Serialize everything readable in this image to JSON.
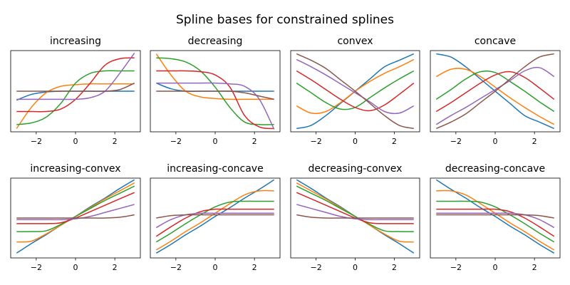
{
  "title": "Spline bases for constrained splines",
  "chart_data": [
    {
      "type": "line",
      "title": "increasing",
      "x": [
        -3,
        -2.25,
        -1.5,
        -0.75,
        0,
        0.75,
        1.5,
        2.25,
        3
      ],
      "xlim": [
        -3.3,
        3.3
      ],
      "ylim": [
        0,
        1
      ],
      "xticks": [
        {
          "value": -2,
          "label": "−2"
        },
        0,
        2
      ],
      "series": [
        {
          "color": "#1f77b4",
          "values": [
            0.39,
            0.46,
            0.49,
            0.5,
            0.5,
            0.5,
            0.5,
            0.5,
            0.5
          ]
        },
        {
          "color": "#ff7f0e",
          "values": [
            0.04,
            0.3,
            0.48,
            0.56,
            0.58,
            0.59,
            0.59,
            0.59,
            0.59
          ]
        },
        {
          "color": "#2ca02c",
          "values": [
            0.09,
            0.11,
            0.18,
            0.35,
            0.6,
            0.72,
            0.75,
            0.75,
            0.75
          ]
        },
        {
          "color": "#d62728",
          "values": [
            0.25,
            0.25,
            0.25,
            0.28,
            0.4,
            0.6,
            0.82,
            0.9,
            0.91
          ]
        },
        {
          "color": "#9467bd",
          "values": [
            0.4,
            0.4,
            0.4,
            0.4,
            0.4,
            0.42,
            0.5,
            0.72,
            0.97
          ]
        },
        {
          "color": "#8c564b",
          "values": [
            0.5,
            0.5,
            0.5,
            0.5,
            0.5,
            0.5,
            0.5,
            0.52,
            0.6
          ]
        }
      ]
    },
    {
      "type": "line",
      "title": "decreasing",
      "x": [
        -3,
        -2.25,
        -1.5,
        -0.75,
        0,
        0.75,
        1.5,
        2.25,
        3
      ],
      "xlim": [
        -3.3,
        3.3
      ],
      "ylim": [
        0,
        1
      ],
      "xticks": [
        {
          "value": -2,
          "label": "−2"
        },
        0,
        2
      ],
      "series": [
        {
          "color": "#1f77b4",
          "values": [
            0.6,
            0.53,
            0.5,
            0.5,
            0.5,
            0.5,
            0.5,
            0.5,
            0.5
          ]
        },
        {
          "color": "#ff7f0e",
          "values": [
            0.96,
            0.7,
            0.5,
            0.43,
            0.41,
            0.4,
            0.4,
            0.4,
            0.4
          ]
        },
        {
          "color": "#2ca02c",
          "values": [
            0.91,
            0.9,
            0.86,
            0.75,
            0.55,
            0.3,
            0.12,
            0.09,
            0.09
          ]
        },
        {
          "color": "#d62728",
          "values": [
            0.75,
            0.75,
            0.75,
            0.74,
            0.7,
            0.55,
            0.2,
            0.06,
            0.04
          ]
        },
        {
          "color": "#9467bd",
          "values": [
            0.6,
            0.6,
            0.6,
            0.6,
            0.6,
            0.59,
            0.56,
            0.4,
            0.03
          ]
        },
        {
          "color": "#8c564b",
          "values": [
            0.5,
            0.5,
            0.5,
            0.5,
            0.5,
            0.5,
            0.48,
            0.44,
            0.4
          ]
        }
      ]
    },
    {
      "type": "line",
      "title": "convex",
      "x": [
        -3,
        -2.25,
        -1.5,
        -0.75,
        0,
        0.75,
        1.5,
        2.25,
        3
      ],
      "xlim": [
        -3.3,
        3.3
      ],
      "ylim": [
        0,
        1
      ],
      "xticks": [
        {
          "value": -2,
          "label": "−2"
        },
        0,
        2
      ],
      "series": [
        {
          "color": "#1f77b4",
          "values": [
            0.04,
            0.08,
            0.2,
            0.35,
            0.5,
            0.65,
            0.8,
            0.88,
            0.96
          ]
        },
        {
          "color": "#ff7f0e",
          "values": [
            0.32,
            0.23,
            0.25,
            0.36,
            0.5,
            0.62,
            0.72,
            0.8,
            0.89
          ]
        },
        {
          "color": "#2ca02c",
          "values": [
            0.6,
            0.48,
            0.36,
            0.28,
            0.3,
            0.42,
            0.54,
            0.65,
            0.75
          ]
        },
        {
          "color": "#d62728",
          "values": [
            0.75,
            0.64,
            0.52,
            0.4,
            0.3,
            0.26,
            0.33,
            0.46,
            0.6
          ]
        },
        {
          "color": "#9467bd",
          "values": [
            0.89,
            0.8,
            0.7,
            0.59,
            0.48,
            0.37,
            0.25,
            0.23,
            0.32
          ]
        },
        {
          "color": "#8c564b",
          "values": [
            0.96,
            0.88,
            0.78,
            0.64,
            0.5,
            0.35,
            0.2,
            0.08,
            0.04
          ]
        }
      ]
    },
    {
      "type": "line",
      "title": "concave",
      "x": [
        -3,
        -2.25,
        -1.5,
        -0.75,
        0,
        0.75,
        1.5,
        2.25,
        3
      ],
      "xlim": [
        -3.3,
        3.3
      ],
      "ylim": [
        0,
        1
      ],
      "xticks": [
        {
          "value": -2,
          "label": "−2"
        },
        0,
        2
      ],
      "series": [
        {
          "color": "#1f77b4",
          "values": [
            0.96,
            0.92,
            0.8,
            0.65,
            0.5,
            0.35,
            0.2,
            0.12,
            0.04
          ]
        },
        {
          "color": "#ff7f0e",
          "values": [
            0.68,
            0.77,
            0.77,
            0.68,
            0.55,
            0.42,
            0.3,
            0.19,
            0.09
          ]
        },
        {
          "color": "#2ca02c",
          "values": [
            0.4,
            0.52,
            0.65,
            0.74,
            0.73,
            0.62,
            0.5,
            0.37,
            0.25
          ]
        },
        {
          "color": "#d62728",
          "values": [
            0.25,
            0.36,
            0.48,
            0.6,
            0.7,
            0.74,
            0.67,
            0.54,
            0.4
          ]
        },
        {
          "color": "#9467bd",
          "values": [
            0.09,
            0.2,
            0.3,
            0.41,
            0.52,
            0.63,
            0.75,
            0.79,
            0.68
          ]
        },
        {
          "color": "#8c564b",
          "values": [
            0.04,
            0.12,
            0.22,
            0.36,
            0.5,
            0.65,
            0.8,
            0.92,
            0.96
          ]
        }
      ]
    },
    {
      "type": "line",
      "title": "increasing-convex",
      "x": [
        -3,
        -2.25,
        -1.5,
        -0.75,
        0,
        0.75,
        1.5,
        2.25,
        3
      ],
      "xlim": [
        -3.3,
        3.3
      ],
      "ylim": [
        0,
        1
      ],
      "xticks": [
        {
          "value": -2,
          "label": "−2"
        },
        0,
        2
      ],
      "series": [
        {
          "color": "#1f77b4",
          "values": [
            0.06,
            0.18,
            0.29,
            0.41,
            0.52,
            0.64,
            0.75,
            0.87,
            0.98
          ]
        },
        {
          "color": "#ff7f0e",
          "values": [
            0.2,
            0.21,
            0.3,
            0.41,
            0.52,
            0.63,
            0.74,
            0.84,
            0.94
          ]
        },
        {
          "color": "#2ca02c",
          "values": [
            0.33,
            0.33,
            0.34,
            0.42,
            0.52,
            0.62,
            0.72,
            0.81,
            0.9
          ]
        },
        {
          "color": "#d62728",
          "values": [
            0.43,
            0.43,
            0.43,
            0.44,
            0.5,
            0.58,
            0.66,
            0.74,
            0.82
          ]
        },
        {
          "color": "#9467bd",
          "values": [
            0.48,
            0.48,
            0.48,
            0.48,
            0.49,
            0.52,
            0.57,
            0.62,
            0.67
          ]
        },
        {
          "color": "#8c564b",
          "values": [
            0.5,
            0.5,
            0.5,
            0.5,
            0.5,
            0.5,
            0.5,
            0.51,
            0.54
          ]
        }
      ]
    },
    {
      "type": "line",
      "title": "increasing-concave",
      "x": [
        -3,
        -2.25,
        -1.5,
        -0.75,
        0,
        0.75,
        1.5,
        2.25,
        3
      ],
      "xlim": [
        -3.3,
        3.3
      ],
      "ylim": [
        0,
        1
      ],
      "xticks": [
        {
          "value": -2,
          "label": "−2"
        },
        0,
        2
      ],
      "series": [
        {
          "color": "#1f77b4",
          "values": [
            0.06,
            0.17,
            0.29,
            0.4,
            0.52,
            0.63,
            0.75,
            0.86,
            0.98
          ]
        },
        {
          "color": "#ff7f0e",
          "values": [
            0.1,
            0.21,
            0.33,
            0.44,
            0.56,
            0.68,
            0.79,
            0.84,
            0.84
          ]
        },
        {
          "color": "#2ca02c",
          "values": [
            0.2,
            0.31,
            0.43,
            0.54,
            0.64,
            0.7,
            0.71,
            0.71,
            0.71
          ]
        },
        {
          "color": "#d62728",
          "values": [
            0.27,
            0.39,
            0.5,
            0.58,
            0.61,
            0.61,
            0.61,
            0.61,
            0.61
          ]
        },
        {
          "color": "#9467bd",
          "values": [
            0.38,
            0.48,
            0.54,
            0.56,
            0.56,
            0.56,
            0.56,
            0.56,
            0.56
          ]
        },
        {
          "color": "#8c564b",
          "values": [
            0.5,
            0.53,
            0.54,
            0.54,
            0.54,
            0.54,
            0.54,
            0.54,
            0.54
          ]
        }
      ]
    },
    {
      "type": "line",
      "title": "decreasing-convex",
      "x": [
        -3,
        -2.25,
        -1.5,
        -0.75,
        0,
        0.75,
        1.5,
        2.25,
        3
      ],
      "xlim": [
        -3.3,
        3.3
      ],
      "ylim": [
        0,
        1
      ],
      "xticks": [
        {
          "value": -2,
          "label": "−2"
        },
        0,
        2
      ],
      "series": [
        {
          "color": "#1f77b4",
          "values": [
            0.98,
            0.87,
            0.75,
            0.64,
            0.52,
            0.41,
            0.29,
            0.18,
            0.06
          ]
        },
        {
          "color": "#ff7f0e",
          "values": [
            0.94,
            0.84,
            0.74,
            0.63,
            0.52,
            0.41,
            0.3,
            0.21,
            0.2
          ]
        },
        {
          "color": "#2ca02c",
          "values": [
            0.9,
            0.81,
            0.72,
            0.62,
            0.52,
            0.42,
            0.34,
            0.33,
            0.33
          ]
        },
        {
          "color": "#d62728",
          "values": [
            0.82,
            0.74,
            0.66,
            0.58,
            0.5,
            0.44,
            0.43,
            0.43,
            0.43
          ]
        },
        {
          "color": "#9467bd",
          "values": [
            0.67,
            0.62,
            0.57,
            0.52,
            0.49,
            0.48,
            0.48,
            0.48,
            0.48
          ]
        },
        {
          "color": "#8c564b",
          "values": [
            0.54,
            0.51,
            0.5,
            0.5,
            0.5,
            0.5,
            0.5,
            0.5,
            0.5
          ]
        }
      ]
    },
    {
      "type": "line",
      "title": "decreasing-concave",
      "x": [
        -3,
        -2.25,
        -1.5,
        -0.75,
        0,
        0.75,
        1.5,
        2.25,
        3
      ],
      "xlim": [
        -3.3,
        3.3
      ],
      "ylim": [
        0,
        1
      ],
      "xticks": [
        {
          "value": -2,
          "label": "−2"
        },
        0,
        2
      ],
      "series": [
        {
          "color": "#1f77b4",
          "values": [
            0.98,
            0.86,
            0.75,
            0.63,
            0.52,
            0.4,
            0.29,
            0.17,
            0.06
          ]
        },
        {
          "color": "#ff7f0e",
          "values": [
            0.84,
            0.84,
            0.79,
            0.68,
            0.56,
            0.44,
            0.33,
            0.21,
            0.1
          ]
        },
        {
          "color": "#2ca02c",
          "values": [
            0.71,
            0.71,
            0.71,
            0.7,
            0.64,
            0.54,
            0.43,
            0.31,
            0.2
          ]
        },
        {
          "color": "#d62728",
          "values": [
            0.61,
            0.61,
            0.61,
            0.61,
            0.61,
            0.58,
            0.5,
            0.39,
            0.27
          ]
        },
        {
          "color": "#9467bd",
          "values": [
            0.56,
            0.56,
            0.56,
            0.56,
            0.56,
            0.56,
            0.54,
            0.48,
            0.38
          ]
        },
        {
          "color": "#8c564b",
          "values": [
            0.54,
            0.54,
            0.54,
            0.54,
            0.54,
            0.54,
            0.54,
            0.53,
            0.5
          ]
        }
      ]
    }
  ]
}
